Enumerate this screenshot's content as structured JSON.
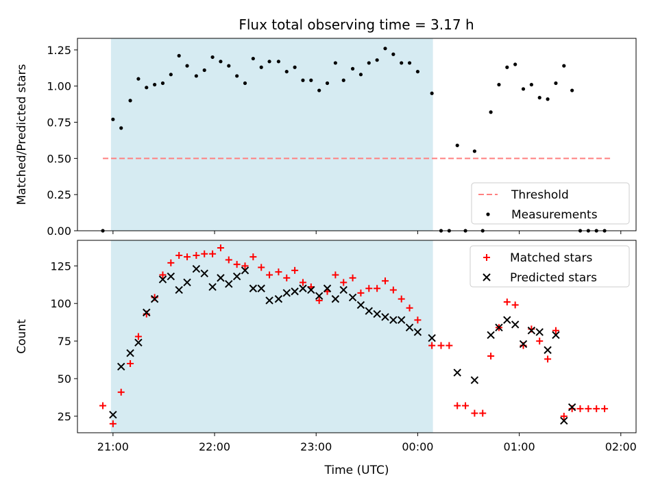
{
  "figure": {
    "title": "Flux total observing time = 3.17 h"
  },
  "chart_data": [
    {
      "type": "scatter",
      "panel": "top",
      "xlabel": "",
      "ylabel": "Matched/Predicted stars",
      "x_unit": "hours since 21:00 UTC",
      "xlim": [
        -0.35,
        5.15
      ],
      "ylim": [
        0.0,
        1.33
      ],
      "yticks": [
        0.0,
        0.25,
        0.5,
        0.75,
        1.0,
        1.25
      ],
      "ytick_labels": [
        "0.00",
        "0.25",
        "0.50",
        "0.75",
        "1.00",
        "1.25"
      ],
      "xticks": [
        0,
        1,
        2,
        3,
        4,
        5
      ],
      "shaded_span": {
        "x0": -0.02,
        "x1": 3.15,
        "color": "#add8e6",
        "alpha": 0.5
      },
      "legend": {
        "position": "lower-right",
        "entries": [
          "Threshold",
          "Measurements"
        ]
      },
      "series": [
        {
          "name": "Threshold",
          "kind": "hline",
          "y": 0.5,
          "x_range": [
            -0.1,
            4.9
          ],
          "color": "#ff7f7f",
          "style": "dashed"
        },
        {
          "name": "Measurements",
          "kind": "points",
          "color": "#000000",
          "marker": "dot",
          "points": [
            [
              -0.1,
              0.0
            ],
            [
              0.0,
              0.77
            ],
            [
              0.08,
              0.71
            ],
            [
              0.17,
              0.9
            ],
            [
              0.25,
              1.05
            ],
            [
              0.33,
              0.99
            ],
            [
              0.41,
              1.01
            ],
            [
              0.49,
              1.02
            ],
            [
              0.57,
              1.08
            ],
            [
              0.65,
              1.21
            ],
            [
              0.73,
              1.14
            ],
            [
              0.82,
              1.07
            ],
            [
              0.9,
              1.11
            ],
            [
              0.98,
              1.2
            ],
            [
              1.06,
              1.17
            ],
            [
              1.14,
              1.14
            ],
            [
              1.22,
              1.07
            ],
            [
              1.3,
              1.02
            ],
            [
              1.38,
              1.19
            ],
            [
              1.46,
              1.13
            ],
            [
              1.54,
              1.17
            ],
            [
              1.63,
              1.17
            ],
            [
              1.71,
              1.1
            ],
            [
              1.79,
              1.13
            ],
            [
              1.87,
              1.04
            ],
            [
              1.95,
              1.04
            ],
            [
              2.03,
              0.97
            ],
            [
              2.11,
              1.02
            ],
            [
              2.19,
              1.16
            ],
            [
              2.27,
              1.04
            ],
            [
              2.36,
              1.12
            ],
            [
              2.44,
              1.08
            ],
            [
              2.52,
              1.16
            ],
            [
              2.6,
              1.18
            ],
            [
              2.68,
              1.26
            ],
            [
              2.76,
              1.22
            ],
            [
              2.84,
              1.16
            ],
            [
              2.92,
              1.16
            ],
            [
              3.0,
              1.1
            ],
            [
              3.14,
              0.95
            ],
            [
              3.23,
              0.0
            ],
            [
              3.31,
              0.0
            ],
            [
              3.39,
              0.59
            ],
            [
              3.47,
              0.0
            ],
            [
              3.56,
              0.55
            ],
            [
              3.64,
              0.0
            ],
            [
              3.72,
              0.82
            ],
            [
              3.8,
              1.01
            ],
            [
              3.88,
              1.13
            ],
            [
              3.96,
              1.15
            ],
            [
              4.04,
              0.98
            ],
            [
              4.12,
              1.01
            ],
            [
              4.2,
              0.92
            ],
            [
              4.28,
              0.91
            ],
            [
              4.36,
              1.02
            ],
            [
              4.44,
              1.14
            ],
            [
              4.52,
              0.97
            ],
            [
              4.6,
              0.0
            ],
            [
              4.68,
              0.0
            ],
            [
              4.76,
              0.0
            ],
            [
              4.84,
              0.0
            ]
          ]
        }
      ]
    },
    {
      "type": "scatter",
      "panel": "bottom",
      "xlabel": "Time (UTC)",
      "ylabel": "Count",
      "x_unit": "hours since 21:00 UTC",
      "xlim": [
        -0.35,
        5.15
      ],
      "ylim": [
        14,
        142
      ],
      "yticks": [
        25,
        50,
        75,
        100,
        125
      ],
      "ytick_labels": [
        "25",
        "50",
        "75",
        "100",
        "125"
      ],
      "xticks": [
        0,
        1,
        2,
        3,
        4,
        5
      ],
      "xtick_labels": [
        "21:00",
        "22:00",
        "23:00",
        "00:00",
        "01:00",
        "02:00"
      ],
      "shaded_span": {
        "x0": -0.02,
        "x1": 3.15,
        "color": "#add8e6",
        "alpha": 0.5
      },
      "legend": {
        "position": "top-right",
        "entries": [
          "Matched stars",
          "Predicted stars"
        ]
      },
      "series": [
        {
          "name": "Matched stars",
          "kind": "points",
          "color": "#ff0000",
          "marker": "plus",
          "points": [
            [
              -0.1,
              32
            ],
            [
              0.0,
              20
            ],
            [
              0.08,
              41
            ],
            [
              0.17,
              60
            ],
            [
              0.25,
              78
            ],
            [
              0.33,
              93
            ],
            [
              0.41,
              104
            ],
            [
              0.49,
              119
            ],
            [
              0.57,
              127
            ],
            [
              0.65,
              132
            ],
            [
              0.73,
              131
            ],
            [
              0.82,
              132
            ],
            [
              0.9,
              133
            ],
            [
              0.98,
              133
            ],
            [
              1.06,
              137
            ],
            [
              1.14,
              129
            ],
            [
              1.22,
              126
            ],
            [
              1.3,
              125
            ],
            [
              1.38,
              131
            ],
            [
              1.46,
              124
            ],
            [
              1.54,
              119
            ],
            [
              1.63,
              121
            ],
            [
              1.71,
              117
            ],
            [
              1.79,
              122
            ],
            [
              1.87,
              114
            ],
            [
              1.95,
              111
            ],
            [
              2.03,
              102
            ],
            [
              2.11,
              108
            ],
            [
              2.19,
              119
            ],
            [
              2.27,
              114
            ],
            [
              2.36,
              117
            ],
            [
              2.44,
              107
            ],
            [
              2.52,
              110
            ],
            [
              2.6,
              110
            ],
            [
              2.68,
              115
            ],
            [
              2.76,
              109
            ],
            [
              2.84,
              103
            ],
            [
              2.92,
              97
            ],
            [
              3.0,
              89
            ],
            [
              3.14,
              72
            ],
            [
              3.23,
              72
            ],
            [
              3.31,
              72
            ],
            [
              3.39,
              32
            ],
            [
              3.47,
              32
            ],
            [
              3.56,
              27
            ],
            [
              3.64,
              27
            ],
            [
              3.72,
              65
            ],
            [
              3.8,
              84
            ],
            [
              3.88,
              101
            ],
            [
              3.96,
              99
            ],
            [
              4.04,
              72
            ],
            [
              4.12,
              83
            ],
            [
              4.2,
              75
            ],
            [
              4.28,
              63
            ],
            [
              4.36,
              82
            ],
            [
              4.44,
              25
            ],
            [
              4.52,
              30
            ],
            [
              4.6,
              30
            ],
            [
              4.68,
              30
            ],
            [
              4.76,
              30
            ],
            [
              4.84,
              30
            ]
          ]
        },
        {
          "name": "Predicted stars",
          "kind": "points",
          "color": "#000000",
          "marker": "x",
          "points": [
            [
              0.0,
              26
            ],
            [
              0.08,
              58
            ],
            [
              0.17,
              67
            ],
            [
              0.25,
              74
            ],
            [
              0.33,
              94
            ],
            [
              0.41,
              103
            ],
            [
              0.49,
              116
            ],
            [
              0.57,
              118
            ],
            [
              0.65,
              109
            ],
            [
              0.73,
              114
            ],
            [
              0.82,
              123
            ],
            [
              0.9,
              120
            ],
            [
              0.98,
              111
            ],
            [
              1.06,
              117
            ],
            [
              1.14,
              113
            ],
            [
              1.22,
              118
            ],
            [
              1.3,
              122
            ],
            [
              1.38,
              110
            ],
            [
              1.46,
              110
            ],
            [
              1.54,
              102
            ],
            [
              1.63,
              103
            ],
            [
              1.71,
              107
            ],
            [
              1.79,
              108
            ],
            [
              1.87,
              110
            ],
            [
              1.95,
              109
            ],
            [
              2.03,
              105
            ],
            [
              2.11,
              110
            ],
            [
              2.19,
              103
            ],
            [
              2.27,
              109
            ],
            [
              2.36,
              104
            ],
            [
              2.44,
              99
            ],
            [
              2.52,
              95
            ],
            [
              2.6,
              93
            ],
            [
              2.68,
              91
            ],
            [
              2.76,
              89
            ],
            [
              2.84,
              89
            ],
            [
              2.92,
              84
            ],
            [
              3.0,
              81
            ],
            [
              3.14,
              77
            ],
            [
              3.39,
              54
            ],
            [
              3.56,
              49
            ],
            [
              3.72,
              79
            ],
            [
              3.8,
              84
            ],
            [
              3.88,
              89
            ],
            [
              3.96,
              86
            ],
            [
              4.04,
              73
            ],
            [
              4.12,
              82
            ],
            [
              4.2,
              81
            ],
            [
              4.28,
              69
            ],
            [
              4.36,
              79
            ],
            [
              4.44,
              22
            ],
            [
              4.52,
              31
            ]
          ]
        }
      ]
    }
  ]
}
